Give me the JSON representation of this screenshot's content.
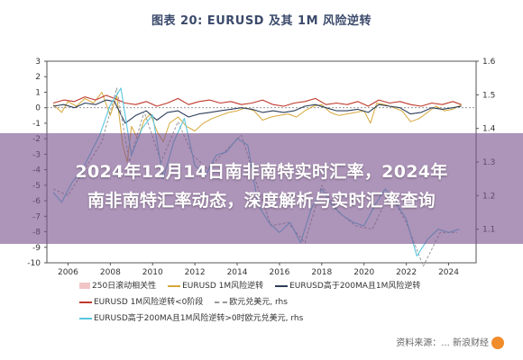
{
  "title": "图表 20: EURUSD 及其 1M 风险逆转",
  "overlay": {
    "line1": "2024年12月14日南非南特实时汇率，2024年",
    "line2": "南非南特汇率动态，深度解析与实时汇率查询"
  },
  "legend": [
    {
      "label": "250日滚动相关性",
      "color": "#f2c6c6",
      "style": "block"
    },
    {
      "label": "EURUSD 1M风险逆转",
      "color": "#d6a83a",
      "style": "line"
    },
    {
      "label": "EURUSD高于200MA且1M风险逆转",
      "color": "#2c3e5a",
      "style": "line"
    },
    {
      "label": "EURUSD 1M风险逆转<0阶段",
      "color": "#c0392b",
      "style": "line"
    },
    {
      "label": "欧元兑美元, rhs",
      "color": "#999999",
      "style": "dash"
    },
    {
      "label": "EURUSD高于200MA且1M风险逆转>0时欧元兑美元, rhs",
      "color": "#59c7e0",
      "style": "line"
    }
  ],
  "watermark": "资料来源：... 新浪财经",
  "chart_data": {
    "type": "line",
    "title": "图表 20: EURUSD 及其 1M 风险逆转",
    "x_ticks": [
      "2006",
      "2008",
      "2010",
      "2012",
      "2014",
      "2016",
      "2018",
      "2020",
      "2022",
      "2024"
    ],
    "y_left_ticks": [
      "3",
      "2",
      "1",
      "0",
      "-1",
      "-2",
      "-3",
      "-4",
      "-5",
      "-6",
      "-7",
      "-8",
      "-9",
      "-10"
    ],
    "y_right_ticks": [
      "1.6",
      "1.5",
      "1.4",
      "1.3",
      "1.2",
      "1.1"
    ],
    "ylim_left": [
      -10,
      3
    ],
    "ylim_right": [
      1.0,
      1.6
    ],
    "series": [
      {
        "name": "EURUSD 1M风险逆转",
        "axis": "left",
        "x": [
          2005.3,
          2005.7,
          2006.0,
          2006.4,
          2006.8,
          2007.2,
          2007.6,
          2008.0,
          2008.3,
          2008.6,
          2008.8,
          2009.0,
          2009.3,
          2009.6,
          2009.9,
          2010.2,
          2010.5,
          2010.8,
          2011.2,
          2011.6,
          2012.0,
          2012.4,
          2012.8,
          2013.2,
          2013.6,
          2014.0,
          2014.4,
          2014.8,
          2015.2,
          2015.6,
          2016.0,
          2016.4,
          2016.8,
          2017.2,
          2017.6,
          2018.0,
          2018.4,
          2018.8,
          2019.2,
          2019.6,
          2020.0,
          2020.3,
          2020.6,
          2021.0,
          2021.4,
          2021.8,
          2022.2,
          2022.6,
          2023.0,
          2023.4,
          2023.8,
          2024.2,
          2024.6
        ],
        "y": [
          0.2,
          -0.3,
          0.4,
          0.1,
          0.6,
          0.3,
          1.0,
          -0.5,
          0.8,
          -2.5,
          -3.5,
          -1.2,
          -2.0,
          -0.8,
          -0.4,
          -1.5,
          -2.2,
          -1.0,
          -0.6,
          -1.2,
          -1.5,
          -1.0,
          -0.7,
          -0.5,
          -0.3,
          -0.2,
          0.0,
          -0.2,
          -0.8,
          -0.6,
          -0.5,
          -0.4,
          -0.6,
          -0.2,
          0.1,
          0.2,
          -0.3,
          -0.5,
          -0.4,
          -0.3,
          -0.2,
          -1.0,
          0.3,
          0.2,
          0.0,
          -0.2,
          -0.9,
          -0.7,
          -0.3,
          0.1,
          -0.2,
          -0.1,
          0.2
        ]
      },
      {
        "name": "EURUSD高于200MA且1M风险逆转",
        "axis": "left",
        "x": [
          2005.3,
          2005.8,
          2006.3,
          2006.8,
          2007.3,
          2007.8,
          2008.2,
          2008.7,
          2009.2,
          2009.7,
          2010.2,
          2010.7,
          2011.2,
          2011.7,
          2012.2,
          2012.7,
          2013.2,
          2013.7,
          2014.2,
          2014.7,
          2015.2,
          2015.7,
          2016.2,
          2016.7,
          2017.2,
          2017.7,
          2018.2,
          2018.7,
          2019.2,
          2019.7,
          2020.2,
          2020.7,
          2021.2,
          2021.7,
          2022.2,
          2022.7,
          2023.2,
          2023.7,
          2024.2,
          2024.6
        ],
        "y": [
          0.1,
          0.2,
          0.0,
          0.3,
          0.2,
          0.5,
          0.4,
          -1.0,
          -0.5,
          -0.2,
          -0.8,
          -0.3,
          -0.2,
          -0.6,
          -0.4,
          -0.3,
          -0.2,
          -0.1,
          0.0,
          -0.1,
          -0.3,
          -0.2,
          -0.3,
          -0.2,
          0.1,
          0.2,
          0.0,
          -0.2,
          -0.2,
          -0.1,
          -0.3,
          0.2,
          0.1,
          0.0,
          -0.4,
          -0.3,
          0.0,
          -0.1,
          0.0,
          0.1
        ]
      },
      {
        "name": "EURUSD 1M风险逆转<0阶段",
        "axis": "left",
        "x": [
          2005.3,
          2005.8,
          2006.3,
          2006.8,
          2007.3,
          2007.8,
          2008.2,
          2008.7,
          2009.2,
          2009.7,
          2010.2,
          2010.7,
          2011.2,
          2011.7,
          2012.2,
          2012.7,
          2013.2,
          2013.7,
          2014.2,
          2014.7,
          2015.2,
          2015.7,
          2016.2,
          2016.7,
          2017.2,
          2017.7,
          2018.2,
          2018.7,
          2019.2,
          2019.7,
          2020.2,
          2020.7,
          2021.2,
          2021.7,
          2022.2,
          2022.7,
          2023.2,
          2023.7,
          2024.2,
          2024.6
        ],
        "y": [
          0.3,
          0.5,
          0.4,
          0.7,
          0.5,
          0.8,
          0.6,
          0.3,
          0.2,
          0.4,
          0.1,
          0.3,
          0.6,
          0.2,
          0.4,
          0.5,
          0.3,
          0.4,
          0.2,
          0.3,
          0.5,
          0.2,
          0.1,
          0.3,
          0.4,
          0.6,
          0.2,
          0.3,
          0.2,
          0.4,
          0.1,
          0.5,
          0.3,
          0.4,
          0.2,
          0.1,
          0.3,
          0.2,
          0.4,
          0.2
        ]
      },
      {
        "name": "欧元兑美元, rhs",
        "axis": "right",
        "x": [
          2005.3,
          2006.0,
          2006.8,
          2007.6,
          2008.3,
          2008.9,
          2009.6,
          2010.4,
          2011.2,
          2011.9,
          2012.6,
          2013.4,
          2014.2,
          2014.9,
          2015.6,
          2016.4,
          2017.2,
          2018.0,
          2018.8,
          2019.6,
          2020.4,
          2021.2,
          2022.0,
          2022.8,
          2023.6,
          2024.4
        ],
        "y": [
          1.22,
          1.2,
          1.28,
          1.36,
          1.52,
          1.3,
          1.45,
          1.3,
          1.42,
          1.32,
          1.28,
          1.33,
          1.38,
          1.24,
          1.11,
          1.12,
          1.06,
          1.23,
          1.15,
          1.11,
          1.1,
          1.21,
          1.12,
          0.99,
          1.09,
          1.09
        ]
      },
      {
        "name": "EURUSD高于200MA且1M风险逆转>0时欧元兑美元, rhs",
        "axis": "right",
        "x": [
          2005.3,
          2005.7,
          2006.2,
          2006.7,
          2007.1,
          2007.5,
          2008.0,
          2008.5,
          2009.0,
          2009.5,
          2010.0,
          2010.5,
          2011.0,
          2011.5,
          2012.0,
          2012.5,
          2013.0,
          2013.5,
          2014.0,
          2014.5,
          2015.0,
          2015.5,
          2016.0,
          2016.5,
          2017.0,
          2017.5,
          2018.0,
          2018.5,
          2019.0,
          2019.5,
          2020.0,
          2020.5,
          2021.0,
          2021.5,
          2022.0,
          2022.5,
          2023.0,
          2023.5,
          2024.0,
          2024.5
        ],
        "y": [
          1.21,
          1.18,
          1.24,
          1.28,
          1.33,
          1.38,
          1.47,
          1.52,
          1.32,
          1.4,
          1.44,
          1.25,
          1.36,
          1.43,
          1.29,
          1.26,
          1.32,
          1.33,
          1.37,
          1.35,
          1.17,
          1.12,
          1.09,
          1.12,
          1.06,
          1.16,
          1.22,
          1.17,
          1.14,
          1.12,
          1.11,
          1.17,
          1.22,
          1.18,
          1.13,
          1.02,
          1.07,
          1.1,
          1.09,
          1.1
        ]
      }
    ]
  }
}
